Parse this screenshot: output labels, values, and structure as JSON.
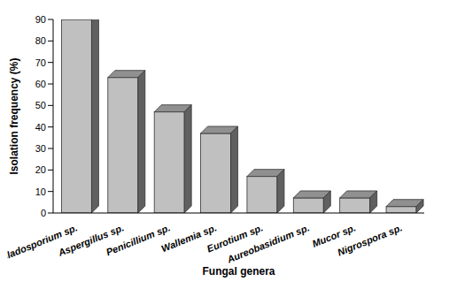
{
  "chart_data": {
    "type": "bar",
    "categories": [
      "Cladosporium sp.",
      "Aspergillus sp.",
      "Penicillium sp.",
      "Wallemia sp.",
      "Eurotium sp.",
      "Aureobasidium sp.",
      "Mucor sp.",
      "Nigrospora sp."
    ],
    "values": [
      90,
      63,
      47,
      37,
      17,
      7,
      7,
      3
    ],
    "color": "#c0c0c0",
    "x_label": "Fungal genera",
    "y_label": "Isolation frequency (%)",
    "ylim": [
      0,
      90
    ],
    "yticks": [
      0,
      10,
      20,
      30,
      40,
      50,
      60,
      70,
      80,
      90
    ],
    "grid": false
  }
}
